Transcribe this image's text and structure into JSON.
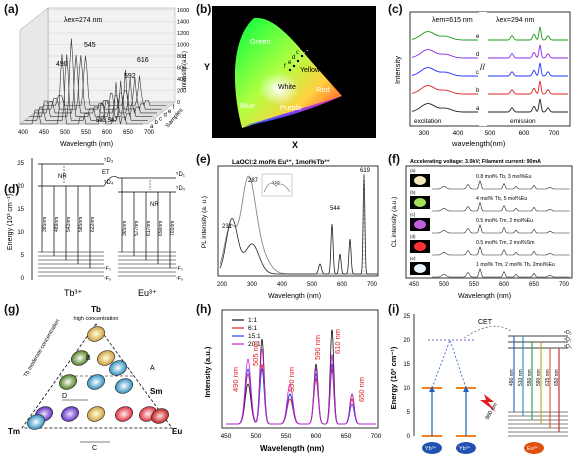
{
  "figure": {
    "panels": {
      "a": {
        "label": "(a)",
        "excitation": "λex=274 nm",
        "peaks": [
          "490",
          "545",
          "592",
          "616",
          "583,587"
        ],
        "xlabel": "Wavelength (nm)",
        "xticks": [
          "400",
          "450",
          "500",
          "550",
          "600",
          "650",
          "700"
        ],
        "zlabel": "Intensity (a.u.)",
        "zticks": [
          "0",
          "200",
          "400",
          "600",
          "800",
          "1000",
          "1200",
          "1400",
          "1600"
        ],
        "depth_label": "Samples",
        "samples": [
          "a",
          "b",
          "c",
          "d",
          "e",
          "f"
        ]
      },
      "b": {
        "label": "(b)",
        "xlabel": "X",
        "ylabel": "Y",
        "regions": [
          "Green",
          "Yellow",
          "White",
          "Blue",
          "Purple",
          "Red"
        ],
        "points": [
          "f",
          "e",
          "d",
          "c",
          "b",
          "a"
        ]
      },
      "c": {
        "label": "(c)",
        "ex_label": "λem=615 nm",
        "em_label": "λex=294 nm",
        "ylabel": "Intensity",
        "xlabel": "wavelength(nm)",
        "xticks": [
          "300",
          "400",
          "500",
          "600",
          "700"
        ],
        "bottom_left": "excitation",
        "bottom_right": "emission",
        "curves": [
          "e",
          "d",
          "c",
          "b",
          "a"
        ],
        "colors": [
          "#1a9a1a",
          "#8a2be2",
          "#2030ff",
          "#e02020",
          "#222222"
        ]
      },
      "d": {
        "label": "(d)",
        "ylabel": "Energy (10³ cm⁻¹)",
        "yticks": [
          "0",
          "5",
          "10",
          "15",
          "20",
          "25"
        ],
        "tb_label": "Tb³⁺",
        "eu_label": "Eu³⁺",
        "tb_levels": [
          "⁵D₃",
          "⁵D₄",
          "⁷F₀",
          "⁷F₆"
        ],
        "eu_levels": [
          "⁵D₁",
          "⁵D₀",
          "⁷F₀",
          "⁷F₆"
        ],
        "tb_lines": [
          "365nm",
          "489nm",
          "542nm",
          "585nm",
          "622nm"
        ],
        "eu_lines": [
          "365nm",
          "577nm",
          "617nm",
          "656nm",
          "701nm"
        ],
        "nr": "NR",
        "et": "ET"
      },
      "e": {
        "label": "(e)",
        "title": "LaOCl:2 mol% Eu³⁺, 1mol%Tb³⁺",
        "peaks": [
          "287",
          "231",
          "544",
          "619"
        ],
        "ylabel": "PL intensity (a. u.)",
        "xlabel": "Wavelength (nm)",
        "xticks": [
          "200",
          "300",
          "400",
          "500",
          "600",
          "700"
        ],
        "inset": "×10"
      },
      "f": {
        "label": "(f)",
        "title": "Accelerating voltage: 3.0kV; Filament current: 90mA",
        "ylabel": "CL intensity (a.u.)",
        "xlabel": "Wavelength (nm)",
        "xticks": [
          "450",
          "500",
          "550",
          "600",
          "650",
          "700"
        ],
        "rows": [
          {
            "tag": "(a)",
            "text": "0.8 mol% Tb, 3 mol%Eu",
            "glow": "#f4e8b8"
          },
          {
            "tag": "(b)",
            "text": "4 mol% Tb, 5 mol%Eu",
            "glow": "#a6e05a"
          },
          {
            "tag": "(c)",
            "text": "0.5 mol% Tm, 2 mol%Eu",
            "glow": "#c060e0"
          },
          {
            "tag": "(d)",
            "text": "0.5 mol% Tm, 2 mol%Sm",
            "glow": "#ff3030"
          },
          {
            "tag": "(e)",
            "text": "1 mol% Tm, 2 mol% Tb, 2mol%Eu",
            "glow": "#e8f4ff"
          }
        ]
      },
      "g": {
        "label": "(g)",
        "top": "Tb",
        "top_sub": "high concentration",
        "side": "Tb moderate concentration",
        "corners": [
          "Tm",
          "Sm",
          "Eu"
        ],
        "letters": [
          "A",
          "B",
          "C",
          "D"
        ]
      },
      "h": {
        "label": "(h)",
        "ylabel": "Intensity (a.u.)",
        "xlabel": "Wavelength (nm)",
        "xticks": [
          "450",
          "500",
          "550",
          "600",
          "650",
          "700"
        ],
        "annotations": [
          "490 nm",
          "505 nm",
          "550 nm",
          "590 nm",
          "610 nm",
          "650 nm"
        ],
        "legend": [
          {
            "name": "1:1",
            "color": "#111111"
          },
          {
            "name": "6:1",
            "color": "#e02020"
          },
          {
            "name": "15:1",
            "color": "#2040ff"
          },
          {
            "name": "20:1",
            "color": "#d020d0"
          }
        ]
      },
      "i": {
        "label": "(i)",
        "ylabel": "Energy (10³ cm⁻¹)",
        "yticks": [
          "0",
          "5",
          "10",
          "15",
          "20",
          "25"
        ],
        "cet": "CET",
        "pump": "980 nm",
        "ions": [
          "Yb³⁺",
          "Yb³⁺",
          "Eu³⁺"
        ],
        "eu_levels": [
          "⁵D₂",
          "⁵D₁",
          "⁵D₀"
        ],
        "lines": [
          "490 nm",
          "510 nm",
          "550 nm",
          "590 nm",
          "615 nm",
          "650 nm"
        ]
      }
    }
  }
}
